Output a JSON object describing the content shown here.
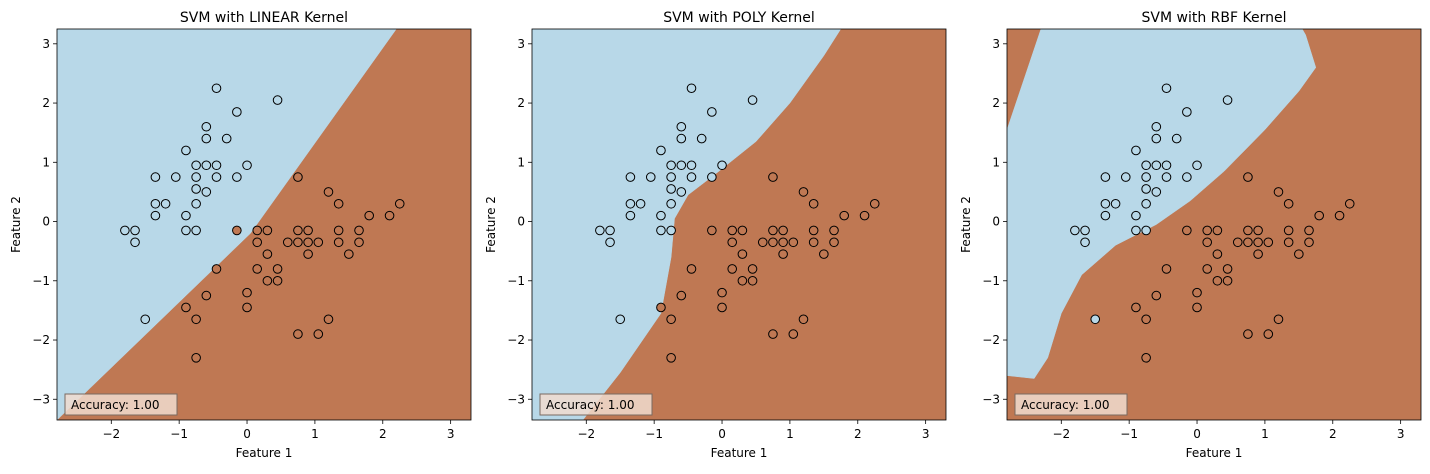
{
  "chart_data": [
    {
      "type": "scatter",
      "title": "SVM with LINEAR Kernel",
      "xlabel": "Feature 1",
      "ylabel": "Feature 2",
      "xlim": [
        -2.8,
        3.3
      ],
      "ylim": [
        -3.35,
        3.25
      ],
      "xticks": [
        -2,
        -1,
        0,
        1,
        2,
        3
      ],
      "yticks": [
        -3,
        -2,
        -1,
        0,
        1,
        2,
        3
      ],
      "annotation": "Accuracy: 1.00",
      "kernel": "linear",
      "region_colors": {
        "class_0": "#b8d8e8",
        "class_1": "#bf7853"
      },
      "boundary_points": [
        [
          -2.8,
          -3.35
        ],
        [
          0.05,
          -0.2
        ],
        [
          2.2,
          3.25
        ]
      ]
    },
    {
      "type": "scatter",
      "title": "SVM with POLY Kernel",
      "xlabel": "Feature 1",
      "ylabel": "Feature 2",
      "xlim": [
        -2.8,
        3.3
      ],
      "ylim": [
        -3.35,
        3.25
      ],
      "xticks": [
        -2,
        -1,
        0,
        1,
        2,
        3
      ],
      "yticks": [
        -3,
        -2,
        -1,
        0,
        1,
        2,
        3
      ],
      "annotation": "Accuracy: 1.00",
      "kernel": "poly",
      "region_colors": {
        "class_0": "#b8d8e8",
        "class_1": "#bf7853"
      },
      "boundary_points": [
        [
          -2.05,
          -3.35
        ],
        [
          -1.5,
          -2.55
        ],
        [
          -0.9,
          -1.55
        ],
        [
          -0.75,
          -0.6
        ],
        [
          -0.7,
          0.05
        ],
        [
          -0.5,
          0.45
        ],
        [
          -0.1,
          0.8
        ],
        [
          0.5,
          1.35
        ],
        [
          1.0,
          2.0
        ],
        [
          1.5,
          2.8
        ],
        [
          1.75,
          3.25
        ]
      ]
    },
    {
      "type": "scatter",
      "title": "SVM with RBF Kernel",
      "xlabel": "Feature 1",
      "ylabel": "Feature 2",
      "xlim": [
        -2.8,
        3.3
      ],
      "ylim": [
        -3.35,
        3.25
      ],
      "xticks": [
        -2,
        -1,
        0,
        1,
        2,
        3
      ],
      "yticks": [
        -3,
        -2,
        -1,
        0,
        1,
        2,
        3
      ],
      "annotation": "Accuracy: 1.00",
      "kernel": "rbf",
      "region_colors": {
        "class_0": "#b8d8e8",
        "class_1": "#bf7853"
      },
      "boundary_points": [
        [
          -2.8,
          -2.6
        ],
        [
          -2.4,
          -2.65
        ],
        [
          -2.2,
          -2.3
        ],
        [
          -2.0,
          -1.55
        ],
        [
          -1.7,
          -0.9
        ],
        [
          -1.2,
          -0.4
        ],
        [
          -0.6,
          -0.05
        ],
        [
          -0.1,
          0.35
        ],
        [
          0.4,
          0.85
        ],
        [
          1.0,
          1.55
        ],
        [
          1.5,
          2.2
        ],
        [
          1.75,
          2.6
        ],
        [
          1.6,
          3.15
        ],
        [
          1.55,
          3.25
        ],
        [
          -2.3,
          3.25
        ],
        [
          -2.8,
          1.55
        ]
      ]
    }
  ],
  "points": {
    "class_0": [
      [
        -1.8,
        -0.15
      ],
      [
        -1.65,
        -0.15
      ],
      [
        -1.65,
        -0.35
      ],
      [
        -1.35,
        0.1
      ],
      [
        -1.35,
        0.3
      ],
      [
        -1.35,
        0.75
      ],
      [
        -1.2,
        0.3
      ],
      [
        -1.05,
        0.75
      ],
      [
        -0.9,
        1.2
      ],
      [
        -0.9,
        0.1
      ],
      [
        -0.9,
        -0.15
      ],
      [
        -0.75,
        -0.15
      ],
      [
        -0.75,
        0.3
      ],
      [
        -0.75,
        0.55
      ],
      [
        -0.75,
        0.75
      ],
      [
        -0.75,
        0.95
      ],
      [
        -0.6,
        0.5
      ],
      [
        -0.6,
        0.95
      ],
      [
        -0.6,
        1.4
      ],
      [
        -0.6,
        1.6
      ],
      [
        -0.45,
        0.75
      ],
      [
        -0.45,
        0.95
      ],
      [
        -0.45,
        2.25
      ],
      [
        -0.3,
        1.4
      ],
      [
        -0.15,
        1.85
      ],
      [
        -0.15,
        0.75
      ],
      [
        0.0,
        0.95
      ],
      [
        0.45,
        2.05
      ],
      [
        -1.5,
        -1.65
      ]
    ],
    "class_1": [
      [
        -0.15,
        -0.15
      ],
      [
        0.15,
        -0.15
      ],
      [
        0.3,
        -0.15
      ],
      [
        0.75,
        -0.15
      ],
      [
        0.9,
        -0.15
      ],
      [
        1.35,
        -0.15
      ],
      [
        1.65,
        -0.15
      ],
      [
        0.15,
        -0.35
      ],
      [
        0.6,
        -0.35
      ],
      [
        0.75,
        -0.35
      ],
      [
        0.9,
        -0.35
      ],
      [
        1.05,
        -0.35
      ],
      [
        1.35,
        -0.35
      ],
      [
        1.65,
        -0.35
      ],
      [
        0.3,
        -0.55
      ],
      [
        1.5,
        -0.55
      ],
      [
        0.9,
        -0.55
      ],
      [
        0.15,
        -0.8
      ],
      [
        0.45,
        -0.8
      ],
      [
        -0.45,
        -0.8
      ],
      [
        0.3,
        -1.0
      ],
      [
        0.45,
        -1.0
      ],
      [
        0.0,
        -1.2
      ],
      [
        -0.6,
        -1.25
      ],
      [
        0.0,
        -1.45
      ],
      [
        -0.9,
        -1.45
      ],
      [
        -0.75,
        -1.65
      ],
      [
        -0.75,
        -2.3
      ],
      [
        0.75,
        -1.9
      ],
      [
        1.05,
        -1.9
      ],
      [
        1.2,
        -1.65
      ],
      [
        0.75,
        0.75
      ],
      [
        1.2,
        0.5
      ],
      [
        1.35,
        0.3
      ],
      [
        1.8,
        0.1
      ],
      [
        2.1,
        0.1
      ],
      [
        2.25,
        0.3
      ]
    ]
  }
}
